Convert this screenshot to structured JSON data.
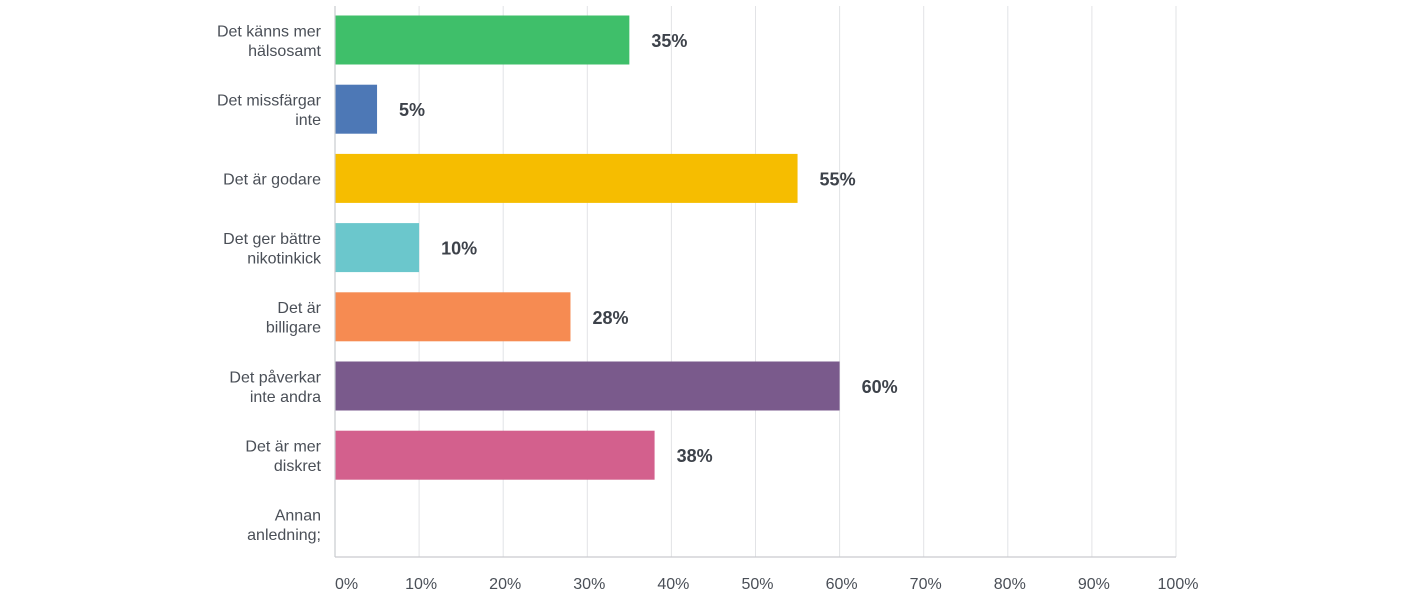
{
  "chart_data": {
    "type": "bar",
    "orientation": "horizontal",
    "categories": [
      [
        "Det känns mer",
        "hälsosamt"
      ],
      [
        "Det missfärgar",
        "inte"
      ],
      [
        "Det är godare"
      ],
      [
        "Det ger bättre",
        "nikotinkick"
      ],
      [
        "Det är",
        "billigare"
      ],
      [
        "Det påverkar",
        "inte andra"
      ],
      [
        "Det är mer",
        "diskret"
      ],
      [
        "Annan",
        "anledning;"
      ]
    ],
    "values": [
      35,
      5,
      55,
      10,
      28,
      60,
      38,
      null
    ],
    "value_labels": [
      "35%",
      "5%",
      "55%",
      "10%",
      "28%",
      "60%",
      "38%",
      ""
    ],
    "colors": [
      "#3fbf6a",
      "#4d78b6",
      "#f6bd00",
      "#6bc7cc",
      "#f68b52",
      "#7a5a8c",
      "#d3608d",
      "#cccccc"
    ],
    "xlim": [
      0,
      100
    ],
    "x_ticks": [
      0,
      10,
      20,
      30,
      40,
      50,
      60,
      70,
      80,
      90,
      100
    ],
    "x_tick_labels": [
      "0%",
      "10%",
      "20%",
      "30%",
      "40%",
      "50%",
      "60%",
      "70%",
      "80%",
      "90%",
      "100%"
    ],
    "grid": true,
    "title": "",
    "xlabel": "",
    "ylabel": ""
  }
}
